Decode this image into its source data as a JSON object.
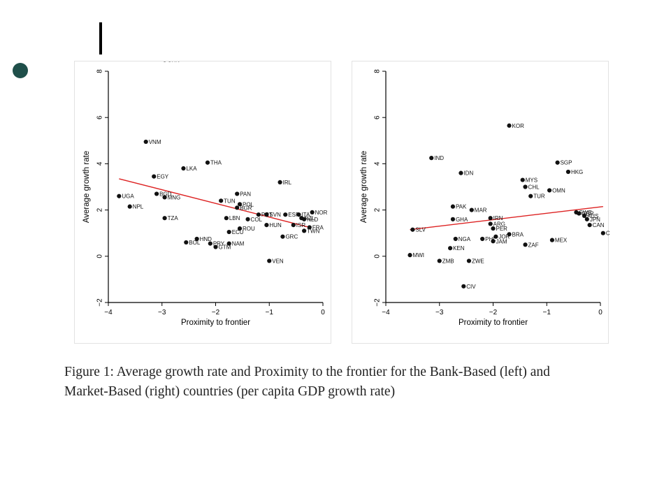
{
  "colors": {
    "bullet": "#1f4f4a",
    "points": "#111111",
    "fit_line": "#dd2222",
    "panel_border": "#e2e2e2"
  },
  "caption": {
    "line1": "Figure 1:  Average growth rate and Proximity to the frontier for the Bank-Based (left) and",
    "line2": "Market-Based (right) countries (per capita GDP growth rate)"
  },
  "chart_data": [
    {
      "type": "scatter",
      "title": "",
      "xlabel": "Proximity to frontier",
      "ylabel": "Average growth rate",
      "xlim": [
        -4,
        0
      ],
      "ylim": [
        -2,
        8
      ],
      "xticks": [
        "−4",
        "−3",
        "−2",
        "−1",
        "0"
      ],
      "yticks": [
        "−2",
        "0",
        "2",
        "4",
        "6",
        "8"
      ],
      "grid": false,
      "fit_line": {
        "x": [
          -3.8,
          -0.25
        ],
        "y": [
          3.35,
          1.25
        ]
      },
      "points": [
        {
          "label": "CHN",
          "x": -2.95,
          "y": 8.5
        },
        {
          "label": "VNM",
          "x": -3.3,
          "y": 4.95
        },
        {
          "label": "LKA",
          "x": -2.6,
          "y": 3.8
        },
        {
          "label": "THA",
          "x": -2.15,
          "y": 4.05
        },
        {
          "label": "EGY",
          "x": -3.15,
          "y": 3.45
        },
        {
          "label": "IRL",
          "x": -0.8,
          "y": 3.2
        },
        {
          "label": "UGA",
          "x": -3.8,
          "y": 2.6
        },
        {
          "label": "BGD",
          "x": -3.1,
          "y": 2.7
        },
        {
          "label": "MNG",
          "x": -2.95,
          "y": 2.55
        },
        {
          "label": "NPL",
          "x": -3.6,
          "y": 2.15
        },
        {
          "label": "PAN",
          "x": -1.6,
          "y": 2.7
        },
        {
          "label": "TUN",
          "x": -1.9,
          "y": 2.4
        },
        {
          "label": "POL",
          "x": -1.55,
          "y": 2.25
        },
        {
          "label": "BGR",
          "x": -1.6,
          "y": 2.1
        },
        {
          "label": "TZA",
          "x": -2.95,
          "y": 1.65
        },
        {
          "label": "LBN",
          "x": -1.8,
          "y": 1.65
        },
        {
          "label": "COL",
          "x": -1.4,
          "y": 1.6
        },
        {
          "label": "PRT",
          "x": -1.2,
          "y": 1.8
        },
        {
          "label": "SVN",
          "x": -1.05,
          "y": 1.8
        },
        {
          "label": "ESP",
          "x": -0.7,
          "y": 1.8
        },
        {
          "label": "ITA",
          "x": -0.45,
          "y": 1.8
        },
        {
          "label": "NOR",
          "x": -0.2,
          "y": 1.9
        },
        {
          "label": "NZL",
          "x": -0.4,
          "y": 1.65
        },
        {
          "label": "NLD",
          "x": -0.35,
          "y": 1.6
        },
        {
          "label": "ROU",
          "x": -1.55,
          "y": 1.2
        },
        {
          "label": "HUN",
          "x": -1.05,
          "y": 1.35
        },
        {
          "label": "ECU",
          "x": -1.75,
          "y": 1.05
        },
        {
          "label": "ISR",
          "x": -0.55,
          "y": 1.35
        },
        {
          "label": "FRA",
          "x": -0.25,
          "y": 1.25
        },
        {
          "label": "TWN",
          "x": -0.35,
          "y": 1.1
        },
        {
          "label": "GRC",
          "x": -0.75,
          "y": 0.85
        },
        {
          "label": "HND",
          "x": -2.35,
          "y": 0.75
        },
        {
          "label": "BOL",
          "x": -2.55,
          "y": 0.6
        },
        {
          "label": "PRY",
          "x": -2.1,
          "y": 0.55
        },
        {
          "label": "GTM",
          "x": -2.0,
          "y": 0.4
        },
        {
          "label": "NAM",
          "x": -1.75,
          "y": 0.55
        },
        {
          "label": "VEN",
          "x": -1.0,
          "y": -0.2
        }
      ]
    },
    {
      "type": "scatter",
      "title": "",
      "xlabel": "Proximity to frontier",
      "ylabel": "Average growth rate",
      "xlim": [
        -4,
        0
      ],
      "ylim": [
        -2,
        8
      ],
      "xticks": [
        "−4",
        "−3",
        "−2",
        "−1",
        "0"
      ],
      "yticks": [
        "−2",
        "0",
        "2",
        "4",
        "6",
        "8"
      ],
      "grid": false,
      "fit_line": {
        "x": [
          -3.55,
          0.05
        ],
        "y": [
          1.15,
          2.15
        ]
      },
      "points": [
        {
          "label": "KOR",
          "x": -1.7,
          "y": 5.65
        },
        {
          "label": "IND",
          "x": -3.15,
          "y": 4.25
        },
        {
          "label": "SGP",
          "x": -0.8,
          "y": 4.05
        },
        {
          "label": "IDN",
          "x": -2.6,
          "y": 3.6
        },
        {
          "label": "HKG",
          "x": -0.6,
          "y": 3.65
        },
        {
          "label": "MYS",
          "x": -1.45,
          "y": 3.3
        },
        {
          "label": "CHL",
          "x": -1.4,
          "y": 3.0
        },
        {
          "label": "OMN",
          "x": -0.95,
          "y": 2.85
        },
        {
          "label": "TUR",
          "x": -1.3,
          "y": 2.6
        },
        {
          "label": "PAK",
          "x": -2.75,
          "y": 2.15
        },
        {
          "label": "MAR",
          "x": -2.4,
          "y": 2.0
        },
        {
          "label": "GHA",
          "x": -2.75,
          "y": 1.6
        },
        {
          "label": "IRN",
          "x": -2.05,
          "y": 1.65
        },
        {
          "label": "ARG",
          "x": -2.05,
          "y": 1.4
        },
        {
          "label": "PER",
          "x": -2.0,
          "y": 1.2
        },
        {
          "label": "SLV",
          "x": -3.5,
          "y": 1.15
        },
        {
          "label": "NGA",
          "x": -2.7,
          "y": 0.75
        },
        {
          "label": "PHL",
          "x": -2.2,
          "y": 0.75
        },
        {
          "label": "JOR",
          "x": -1.95,
          "y": 0.85
        },
        {
          "label": "JAM",
          "x": -2.0,
          "y": 0.65
        },
        {
          "label": "BRA",
          "x": -1.7,
          "y": 0.95
        },
        {
          "label": "ZAF",
          "x": -1.4,
          "y": 0.5
        },
        {
          "label": "MEX",
          "x": -0.9,
          "y": 0.7
        },
        {
          "label": "KEN",
          "x": -2.8,
          "y": 0.35
        },
        {
          "label": "MWI",
          "x": -3.55,
          "y": 0.05
        },
        {
          "label": "ZMB",
          "x": -3.0,
          "y": -0.2
        },
        {
          "label": "ZWE",
          "x": -2.45,
          "y": -0.2
        },
        {
          "label": "CIV",
          "x": -2.55,
          "y": -1.3
        },
        {
          "label": "SWE",
          "x": -0.45,
          "y": 1.9
        },
        {
          "label": "GBR",
          "x": -0.4,
          "y": 1.85
        },
        {
          "label": "AUS",
          "x": -0.3,
          "y": 1.75
        },
        {
          "label": "JPN",
          "x": -0.25,
          "y": 1.6
        },
        {
          "label": "CAN",
          "x": -0.2,
          "y": 1.35
        },
        {
          "label": "CHE",
          "x": 0.05,
          "y": 1.0
        }
      ]
    }
  ]
}
